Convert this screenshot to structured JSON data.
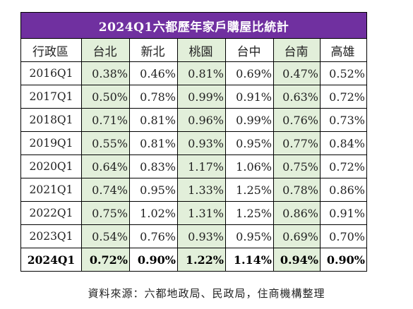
{
  "title": "2024Q1六都歷年家戶購屋比統計",
  "headers": [
    "行政區",
    "台北",
    "新北",
    "桃園",
    "台中",
    "台南",
    "高雄"
  ],
  "rows": [
    {
      "period": "2016Q1",
      "values": [
        "0.38%",
        "0.46%",
        "0.81%",
        "0.69%",
        "0.47%",
        "0.52%"
      ]
    },
    {
      "period": "2017Q1",
      "values": [
        "0.50%",
        "0.78%",
        "0.99%",
        "0.91%",
        "0.63%",
        "0.72%"
      ]
    },
    {
      "period": "2018Q1",
      "values": [
        "0.71%",
        "0.81%",
        "0.96%",
        "0.99%",
        "0.76%",
        "0.73%"
      ]
    },
    {
      "period": "2019Q1",
      "values": [
        "0.55%",
        "0.81%",
        "0.93%",
        "0.95%",
        "0.77%",
        "0.84%"
      ]
    },
    {
      "period": "2020Q1",
      "values": [
        "0.64%",
        "0.83%",
        "1.17%",
        "1.06%",
        "0.75%",
        "0.72%"
      ]
    },
    {
      "period": "2021Q1",
      "values": [
        "0.74%",
        "0.95%",
        "1.33%",
        "1.25%",
        "0.78%",
        "0.86%"
      ]
    },
    {
      "period": "2022Q1",
      "values": [
        "0.75%",
        "1.02%",
        "1.31%",
        "1.25%",
        "0.86%",
        "0.91%"
      ]
    },
    {
      "period": "2023Q1",
      "values": [
        "0.54%",
        "0.76%",
        "0.93%",
        "0.95%",
        "0.69%",
        "0.70%"
      ]
    },
    {
      "period": "2024Q1",
      "values": [
        "0.72%",
        "0.90%",
        "1.22%",
        "1.14%",
        "0.94%",
        "0.90%"
      ]
    }
  ],
  "source": "資料來源：六都地政局、民政局，住商機構整理",
  "colors": {
    "title_bg": "#7030a0",
    "highlight": "#e2efda"
  }
}
